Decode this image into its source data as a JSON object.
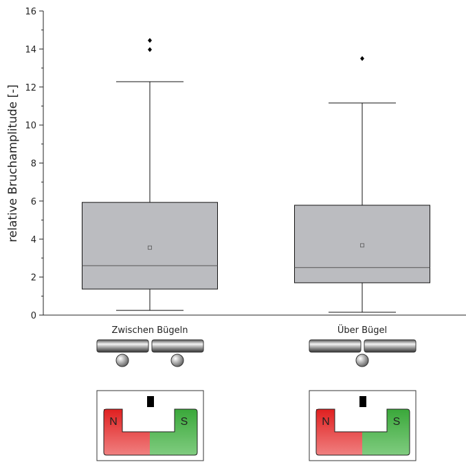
{
  "chart_data": {
    "type": "box",
    "y_label": "relative Bruchamplitude [-]",
    "categories": [
      "Zwischen Bügeln",
      "Über Bügel"
    ],
    "color": "#bbbcc0",
    "boxes": [
      {
        "whisker_low": 0.25,
        "q1": 1.37,
        "median": 2.6,
        "q3": 5.93,
        "whisker_high": 12.28,
        "mean": 3.55,
        "outliers": [
          14.45,
          13.97
        ]
      },
      {
        "whisker_low": 0.15,
        "q1": 1.7,
        "median": 2.5,
        "q3": 5.78,
        "whisker_high": 11.16,
        "mean": 3.67,
        "outliers": [
          13.5
        ]
      }
    ],
    "ylim": [
      0,
      16
    ],
    "yticks": [
      0,
      2,
      4,
      6,
      8,
      10,
      12,
      14,
      16
    ],
    "magnet_labels": [
      "N",
      "S"
    ]
  }
}
